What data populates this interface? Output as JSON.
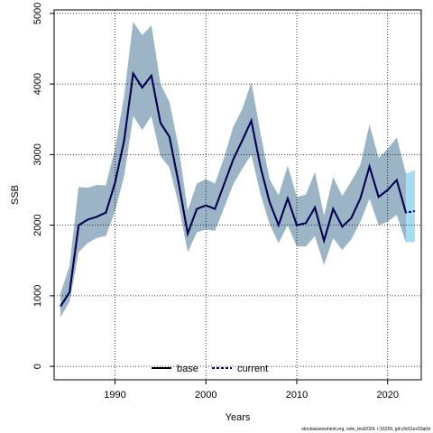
{
  "chart_data": {
    "type": "line",
    "xlabel": "Years",
    "ylabel": "SSB",
    "xlim": [
      1983.3,
      2023.7
    ],
    "ylim": [
      -190,
      5050
    ],
    "x_ticks": [
      1990,
      2000,
      2010,
      2020
    ],
    "y_ticks": [
      0,
      1000,
      2000,
      3000,
      4000,
      5000
    ],
    "grid": true,
    "legend_position": "bottom-center",
    "colors": {
      "band_base": "#9aa9b4",
      "band_overlap": "#9cbcd0",
      "band_current": "#a8dcf5",
      "base_line": "#000000",
      "current_line": "#00008b"
    },
    "series": [
      {
        "name": "base",
        "style": "solid",
        "x": [
          1984,
          1985,
          1986,
          1987,
          1988,
          1989,
          1990,
          1991,
          1992,
          1993,
          1994,
          1995,
          1996,
          1997,
          1998,
          1999,
          2000,
          2001,
          2002,
          2003,
          2004,
          2005,
          2006,
          2007,
          2008,
          2009,
          2010,
          2011,
          2012,
          2013,
          2014,
          2015,
          2016,
          2017,
          2018,
          2019,
          2020,
          2021,
          2022
        ],
        "values": [
          850,
          1050,
          2000,
          2080,
          2120,
          2180,
          2600,
          3200,
          4150,
          3950,
          4120,
          3450,
          3250,
          2600,
          1880,
          2230,
          2280,
          2230,
          2580,
          2930,
          3200,
          3480,
          2830,
          2330,
          2000,
          2380,
          2000,
          2030,
          2250,
          1780,
          2230,
          1980,
          2100,
          2380,
          2830,
          2400,
          2500,
          2640,
          2180
        ],
        "lower": [
          700,
          920,
          1620,
          1750,
          1820,
          1850,
          2200,
          2700,
          3550,
          3350,
          3550,
          2980,
          2820,
          2300,
          1620,
          1900,
          1940,
          1920,
          2250,
          2580,
          2800,
          3000,
          2450,
          2020,
          1750,
          2000,
          1700,
          1700,
          1850,
          1440,
          1820,
          1650,
          1800,
          2050,
          2380,
          2000,
          2050,
          2150,
          1760
        ],
        "upper": [
          1030,
          1420,
          2540,
          2530,
          2570,
          2560,
          3080,
          3820,
          4880,
          4690,
          4830,
          4000,
          3740,
          3100,
          2200,
          2590,
          2650,
          2590,
          2950,
          3390,
          3640,
          4020,
          3300,
          2650,
          2420,
          2840,
          2400,
          2430,
          2750,
          2130,
          2680,
          2410,
          2620,
          2850,
          3420,
          2950,
          3080,
          3240,
          2730
        ]
      },
      {
        "name": "current",
        "style": "dashed",
        "x": [
          1984,
          1985,
          1986,
          1987,
          1988,
          1989,
          1990,
          1991,
          1992,
          1993,
          1994,
          1995,
          1996,
          1997,
          1998,
          1999,
          2000,
          2001,
          2002,
          2003,
          2004,
          2005,
          2006,
          2007,
          2008,
          2009,
          2010,
          2011,
          2012,
          2013,
          2014,
          2015,
          2016,
          2017,
          2018,
          2019,
          2020,
          2021,
          2022,
          2023
        ],
        "values": [
          850,
          1050,
          2000,
          2080,
          2120,
          2180,
          2600,
          3200,
          4150,
          3950,
          4120,
          3450,
          3250,
          2600,
          1880,
          2230,
          2280,
          2230,
          2580,
          2930,
          3200,
          3480,
          2830,
          2330,
          2000,
          2380,
          2000,
          2030,
          2250,
          1780,
          2230,
          1980,
          2100,
          2380,
          2830,
          2400,
          2500,
          2640,
          2180,
          2200
        ],
        "lower": [
          700,
          920,
          1620,
          1750,
          1820,
          1850,
          2200,
          2700,
          3550,
          3350,
          3550,
          2980,
          2820,
          2300,
          1620,
          1900,
          1940,
          1920,
          2250,
          2580,
          2800,
          3000,
          2450,
          2020,
          1750,
          2000,
          1700,
          1700,
          1850,
          1440,
          1820,
          1650,
          1800,
          2050,
          2380,
          2000,
          2050,
          2150,
          1760,
          1760
        ],
        "upper": [
          1030,
          1420,
          2540,
          2530,
          2570,
          2560,
          3080,
          3820,
          4880,
          4690,
          4830,
          4000,
          3740,
          3100,
          2200,
          2590,
          2650,
          2590,
          2950,
          3390,
          3640,
          4020,
          3300,
          2650,
          2420,
          2840,
          2400,
          2430,
          2750,
          2130,
          2680,
          2410,
          2620,
          2850,
          3420,
          2950,
          3080,
          3240,
          2730,
          2780
        ]
      }
    ]
  },
  "footnote": "stockassessment.org, sole_test2024, r:16259, git:c9c61ec53a0d"
}
